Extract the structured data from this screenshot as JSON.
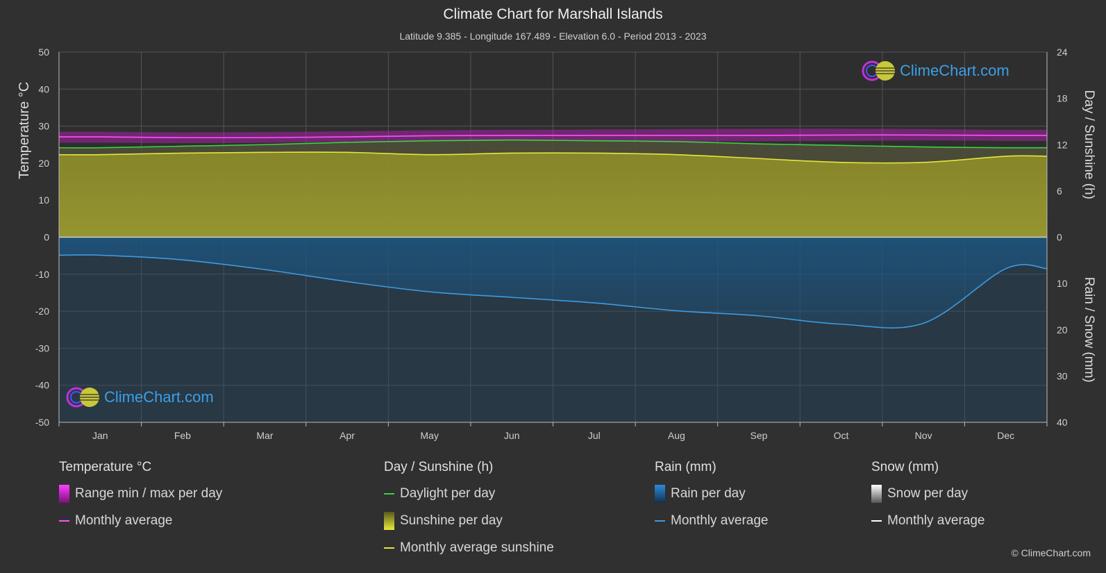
{
  "title": "Climate Chart for Marshall Islands",
  "subtitle": "Latitude 9.385 - Longitude 167.489 - Elevation 6.0 - Period 2013 - 2023",
  "logo_text": "ClimeChart.com",
  "copyright": "© ClimeChart.com",
  "colors": {
    "background": "#303030",
    "temp_range": "#c020c0",
    "temp_avg": "#ff50ff",
    "daylight": "#40d040",
    "sunshine_fill": "#9a9a30",
    "sunshine_avg": "#e6e63a",
    "rain_fill": "#1f5f8f",
    "rain_avg": "#3d9be0",
    "snow_avg": "#ffffff"
  },
  "chart_data": {
    "type": "area",
    "categories": [
      "Jan",
      "Feb",
      "Mar",
      "Apr",
      "May",
      "Jun",
      "Jul",
      "Aug",
      "Sep",
      "Oct",
      "Nov",
      "Dec"
    ],
    "left_axis": {
      "label": "Temperature °C",
      "ylim": [
        -50,
        50
      ],
      "ticks": [
        50,
        40,
        30,
        20,
        10,
        0,
        -10,
        -20,
        -30,
        -40,
        -50
      ]
    },
    "right_axis_top": {
      "label": "Day / Sunshine (h)",
      "ylim": [
        0,
        24
      ],
      "ticks": [
        24,
        18,
        12,
        6,
        0
      ]
    },
    "right_axis_bottom": {
      "label": "Rain / Snow (mm)",
      "ylim": [
        0,
        40
      ],
      "ticks": [
        0,
        10,
        20,
        30,
        40
      ]
    },
    "grid": true,
    "series": [
      {
        "name": "Monthly average",
        "group": "Temperature °C",
        "axis": "temperature",
        "values": [
          27.1,
          26.9,
          26.9,
          27.1,
          27.4,
          27.5,
          27.5,
          27.5,
          27.5,
          27.6,
          27.6,
          27.5
        ]
      },
      {
        "name": "Range min / max per day",
        "group": "Temperature °C",
        "axis": "temperature",
        "min": [
          25.5,
          25.4,
          25.5,
          25.8,
          26.0,
          26.1,
          26.0,
          25.9,
          25.9,
          26.0,
          26.1,
          26.0
        ],
        "max": [
          28.5,
          28.3,
          28.4,
          28.6,
          28.9,
          29.0,
          29.1,
          29.2,
          29.3,
          29.3,
          29.2,
          29.0
        ]
      },
      {
        "name": "Daylight per day",
        "group": "Day / Sunshine (h)",
        "axis": "sunshine",
        "values": [
          11.6,
          11.8,
          12.0,
          12.3,
          12.5,
          12.6,
          12.5,
          12.4,
          12.1,
          11.9,
          11.7,
          11.6
        ]
      },
      {
        "name": "Sunshine per day",
        "group": "Day / Sunshine (h)",
        "axis": "sunshine",
        "values": [
          10.7,
          10.9,
          11.0,
          11.0,
          10.7,
          10.9,
          10.9,
          10.7,
          10.2,
          9.7,
          9.7,
          10.5
        ]
      },
      {
        "name": "Monthly average sunshine",
        "group": "Day / Sunshine (h)",
        "axis": "sunshine",
        "values": [
          10.7,
          10.9,
          11.0,
          11.0,
          10.7,
          10.9,
          10.9,
          10.7,
          10.2,
          9.7,
          9.7,
          10.5
        ]
      },
      {
        "name": "Rain per day",
        "group": "Rain (mm)",
        "axis": "rain",
        "values": [
          3.9,
          4.9,
          7.0,
          9.6,
          11.8,
          13.0,
          14.2,
          15.9,
          17.0,
          18.8,
          18.6,
          6.8
        ]
      },
      {
        "name": "Monthly average",
        "group": "Rain (mm)",
        "axis": "rain",
        "values": [
          3.9,
          4.9,
          7.0,
          9.6,
          11.8,
          13.0,
          14.2,
          15.9,
          17.0,
          18.8,
          18.6,
          6.8
        ]
      },
      {
        "name": "Snow per day",
        "group": "Snow (mm)",
        "axis": "rain",
        "values": [
          0,
          0,
          0,
          0,
          0,
          0,
          0,
          0,
          0,
          0,
          0,
          0
        ]
      },
      {
        "name": "Monthly average",
        "group": "Snow (mm)",
        "axis": "rain",
        "values": [
          0,
          0,
          0,
          0,
          0,
          0,
          0,
          0,
          0,
          0,
          0,
          0
        ]
      }
    ]
  },
  "legend": {
    "temperature": {
      "heading": "Temperature °C",
      "items": [
        "Range min / max per day",
        "Monthly average"
      ]
    },
    "sunshine": {
      "heading": "Day / Sunshine (h)",
      "items": [
        "Daylight per day",
        "Sunshine per day",
        "Monthly average sunshine"
      ]
    },
    "rain": {
      "heading": "Rain (mm)",
      "items": [
        "Rain per day",
        "Monthly average"
      ]
    },
    "snow": {
      "heading": "Snow (mm)",
      "items": [
        "Snow per day",
        "Monthly average"
      ]
    }
  }
}
